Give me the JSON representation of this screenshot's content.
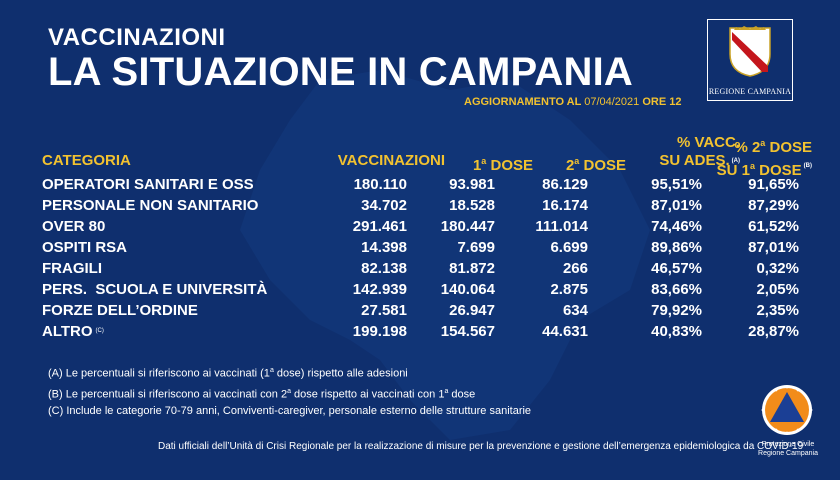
{
  "header": {
    "kicker": "VACCINAZIONI",
    "title": "LA SITUAZIONE IN CAMPANIA",
    "update_prefix": "AGGIORNAMENTO AL",
    "update_date": "07/04/2021",
    "update_suffix": "ORE 12"
  },
  "region_logo": {
    "name": "REGIONE CAMPANIA"
  },
  "table": {
    "headers": {
      "categoria": "CATEGORIA",
      "vaccinazioni": "VACCINAZIONI",
      "dose1_num": "1",
      "dose1_sup": "a",
      "dose1_label": "DOSE",
      "dose2_num": "2",
      "dose2_sup": "a",
      "dose2_label": "DOSE",
      "pct_vacc_l1": "% VACC.",
      "pct_vacc_l2": "SU ADES.",
      "pct_vacc_ref": "(A)",
      "pct_dose_l1_a": "% 2",
      "pct_dose_l1_sup": "a",
      "pct_dose_l1_b": "DOSE",
      "pct_dose_l2_a": "SU 1",
      "pct_dose_l2_sup": "a",
      "pct_dose_l2_b": "DOSE",
      "pct_dose_ref": "(B)"
    },
    "rows": [
      {
        "name": "OPERATORI SANITARI E OSS",
        "note": "",
        "vacc": "180.110",
        "d1": "93.981",
        "d2": "86.129",
        "pct_ades": "95,51%",
        "pct_d2": "91,65%"
      },
      {
        "name": "PERSONALE NON SANITARIO",
        "note": "",
        "vacc": "34.702",
        "d1": "18.528",
        "d2": "16.174",
        "pct_ades": "87,01%",
        "pct_d2": "87,29%"
      },
      {
        "name": "OVER 80",
        "note": "",
        "vacc": "291.461",
        "d1": "180.447",
        "d2": "111.014",
        "pct_ades": "74,46%",
        "pct_d2": "61,52%"
      },
      {
        "name": "OSPITI RSA",
        "note": "",
        "vacc": "14.398",
        "d1": "7.699",
        "d2": "6.699",
        "pct_ades": "89,86%",
        "pct_d2": "87,01%"
      },
      {
        "name": "FRAGILI",
        "note": "",
        "vacc": "82.138",
        "d1": "81.872",
        "d2": "266",
        "pct_ades": "46,57%",
        "pct_d2": "0,32%"
      },
      {
        "name": "PERS.  SCUOLA E UNIVERSITÀ",
        "note": "",
        "vacc": "142.939",
        "d1": "140.064",
        "d2": "2.875",
        "pct_ades": "83,66%",
        "pct_d2": "2,05%"
      },
      {
        "name": "FORZE DELL’ORDINE",
        "note": "",
        "vacc": "27.581",
        "d1": "26.947",
        "d2": "634",
        "pct_ades": "79,92%",
        "pct_d2": "2,35%"
      },
      {
        "name": "ALTRO",
        "note": "(C)",
        "vacc": "199.198",
        "d1": "154.567",
        "d2": "44.631",
        "pct_ades": "40,83%",
        "pct_d2": "28,87%"
      }
    ]
  },
  "notes": {
    "a_pre": "(A) Le percentuali si riferiscono ai vaccinati (1",
    "a_sup": "a",
    "a_post": " dose) rispetto alle adesioni",
    "b_pre": "(B) Le percentuali si riferiscono ai vaccinati con 2",
    "b_sup": "a",
    "b_mid": " dose rispetto ai vaccinati con 1",
    "b_sup2": "a",
    "b_post": " dose",
    "c": "(C) Include le categorie 70-79 anni, Conviventi-caregiver, personale esterno delle strutture sanitarie"
  },
  "source": "Dati ufficiali dell’Unità di Crisi Regionale per la realizzazione di misure per la prevenzione e gestione dell’emergenza epidemiologica da COVID-19",
  "civil_protection": {
    "line1": "Protezione Civile",
    "line2": "Regione Campania"
  },
  "colors": {
    "background": "#0f2f6e",
    "accent": "#f2c230",
    "text": "#ffffff"
  }
}
